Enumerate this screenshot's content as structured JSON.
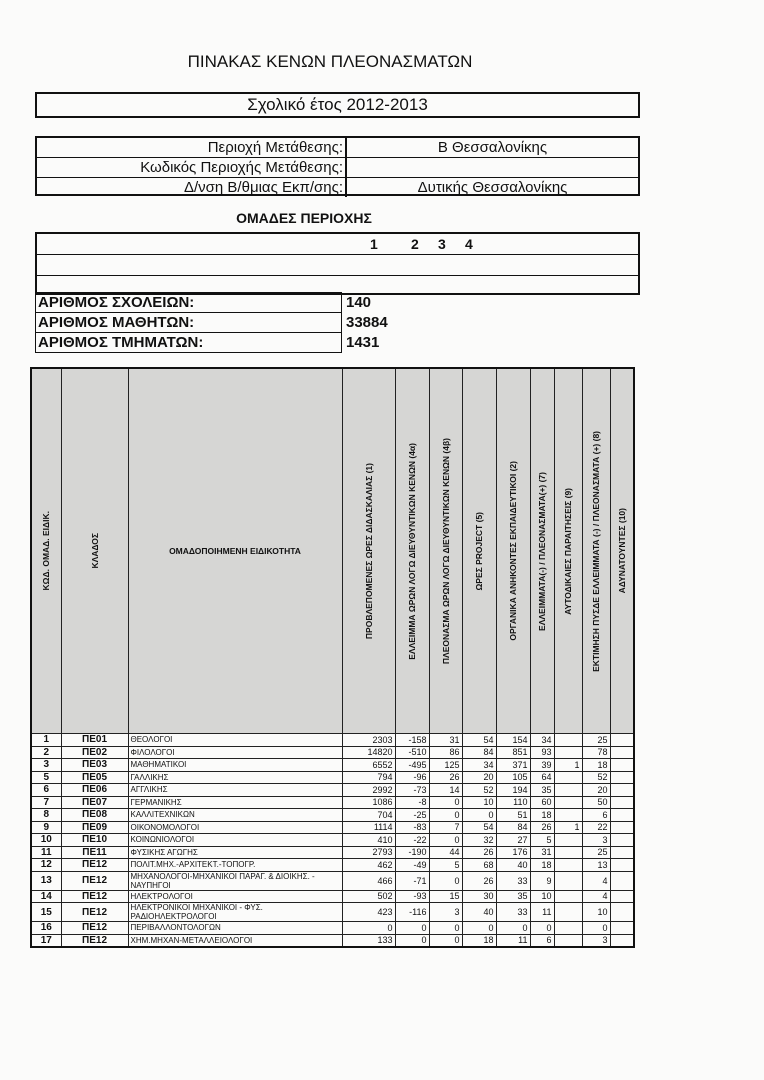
{
  "title": "ΠΙΝΑΚΑΣ ΚΕΝΩΝ ΠΛΕΟΝΑΣΜΑΤΩΝ",
  "school_year": "Σχολικό έτος 2012-2013",
  "region": [
    {
      "label": "Περιοχή Μετάθεσης:",
      "value": "Β Θεσσαλονίκης"
    },
    {
      "label": "Κωδικός Περιοχής Μετάθεσης:",
      "value": ""
    },
    {
      "label": "Δ/νση Β/θμιας Εκπ/σης:",
      "value": "Δυτικής Θεσσαλονίκης"
    }
  ],
  "groups": {
    "title": "ΟΜΑΔΕΣ ΠΕΡΙΟΧΗΣ",
    "numbers": [
      "1",
      "2",
      "3",
      "4"
    ]
  },
  "counts": [
    {
      "label": "ΑΡΙΘΜΟΣ ΣΧΟΛΕΙΩΝ:",
      "value": "140"
    },
    {
      "label": "ΑΡΙΘΜΟΣ ΜΑΘΗΤΩΝ:",
      "value": "33884"
    },
    {
      "label": "ΑΡΙΘΜΟΣ ΤΜΗΜΑΤΩΝ:",
      "value": "1431"
    }
  ],
  "table": {
    "headers": [
      "ΚΩΔ. ΟΜΑΔ. ΕΙΔΙΚ.",
      "ΚΛΑΔΟΣ",
      "ΟΜΑΔΟΠΟΙΗΜΕΝΗ ΕΙΔΙΚΟΤΗΤΑ",
      "ΠΡΟΒΛΕΠΟΜΕΝΕΣ ΩΡΕΣ ΔΙΔΑΣΚΑΛΙΑΣ (1)",
      "ΕΛΛΕΙΜΜΑ ΩΡΩΝ ΛΟΓΩ ΔΙΕΥΘΥΝΤΙΚΩΝ ΚΕΝΩΝ (4α)",
      "ΠΛΕΟΝΑΣΜΑ ΩΡΩΝ ΛΟΓΩ ΔΙΕΥΘΥΝΤΙΚΩΝ ΚΕΝΩΝ (4β)",
      "ΩΡΕΣ PROJECT (5)",
      "ΟΡΓΑΝΙΚΑ ΑΝΗΚΟΝΤΕΣ ΕΚΠΑΙΔΕΥΤΙΚΟΙ     (2)",
      "ΕΛΛΕΙΜΜΑΤΑ(-) / ΠΛΕΟΝΑΣΜΑΤΑ(+) (7)",
      "ΑΥΤΟΔΙΚΑΙΕΣ ΠΑΡΑΙΤΗΣΕΙΣ (9)",
      "ΕΚΤΙΜΗΣΗ ΠΥΣΔΕ ΕΛΛΕΙΜΜΑΤΑ (-) / ΠΛΕΟΝΑΣΜΑΤΑ (+) (8)",
      "ΑΔΥΝΑΤΟΥΝΤΕΣ (10)"
    ],
    "rows": [
      [
        "1",
        "ΠΕ01",
        "ΘΕΟΛΟΓΟΙ",
        "2303",
        "-158",
        "31",
        "54",
        "154",
        "34",
        "",
        "25",
        ""
      ],
      [
        "2",
        "ΠΕ02",
        "ΦΙΛΟΛΟΓΟΙ",
        "14820",
        "-510",
        "86",
        "84",
        "851",
        "93",
        "",
        "78",
        ""
      ],
      [
        "3",
        "ΠΕ03",
        "ΜΑΘΗΜΑΤΙΚΟΙ",
        "6552",
        "-495",
        "125",
        "34",
        "371",
        "39",
        "1",
        "18",
        ""
      ],
      [
        "5",
        "ΠΕ05",
        "ΓΑΛΛΙΚΗΣ",
        "794",
        "-96",
        "26",
        "20",
        "105",
        "64",
        "",
        "52",
        ""
      ],
      [
        "6",
        "ΠΕ06",
        "ΑΓΓΛΙΚΗΣ",
        "2992",
        "-73",
        "14",
        "52",
        "194",
        "35",
        "",
        "20",
        ""
      ],
      [
        "7",
        "ΠΕ07",
        "ΓΕΡΜΑΝΙΚΗΣ",
        "1086",
        "-8",
        "0",
        "10",
        "110",
        "60",
        "",
        "50",
        ""
      ],
      [
        "8",
        "ΠΕ08",
        "ΚΑΛΛΙΤΕΧΝΙΚΩΝ",
        "704",
        "-25",
        "0",
        "0",
        "51",
        "18",
        "",
        "6",
        ""
      ],
      [
        "9",
        "ΠΕ09",
        "ΟΙΚΟΝΟΜΟΛΟΓΟΙ",
        "1114",
        "-83",
        "7",
        "54",
        "84",
        "26",
        "1",
        "22",
        ""
      ],
      [
        "10",
        "ΠΕ10",
        "ΚΟΙΝΩΝΙΟΛΟΓΟΙ",
        "410",
        "-22",
        "0",
        "32",
        "27",
        "5",
        "",
        "3",
        ""
      ],
      [
        "11",
        "ΠΕ11",
        "ΦΥΣΙΚΗΣ ΑΓΩΓΗΣ",
        "2793",
        "-190",
        "44",
        "26",
        "176",
        "31",
        "",
        "25",
        ""
      ],
      [
        "12",
        "ΠΕ12",
        "ΠΟΛΙΤ.ΜΗΧ.-ΑΡΧΙΤΕΚΤ.-ΤΟΠΟΓΡ.",
        "462",
        "-49",
        "5",
        "68",
        "40",
        "18",
        "",
        "13",
        ""
      ],
      [
        "13",
        "ΠΕ12",
        "ΜΗΧΑΝΟΛΟΓΟΙ-ΜΗΧΑΝΙΚΟΙ ΠΑΡΑΓ. & ΔΙΟΙΚΗΣ. - ΝΑΥΠΗΓΟΙ",
        "466",
        "-71",
        "0",
        "26",
        "33",
        "9",
        "",
        "4",
        ""
      ],
      [
        "14",
        "ΠΕ12",
        "ΗΛΕΚΤΡΟΛΟΓΟΙ",
        "502",
        "-93",
        "15",
        "30",
        "35",
        "10",
        "",
        "4",
        ""
      ],
      [
        "15",
        "ΠΕ12",
        "ΗΛΕΚΤΡΟΝΙΚΟΙ ΜΗΧΑΝΙΚΟΙ - ΦΥΣ. ΡΑΔΙΟΗΛΕΚΤΡΟΛΟΓΟΙ",
        "423",
        "-116",
        "3",
        "40",
        "33",
        "11",
        "",
        "10",
        ""
      ],
      [
        "16",
        "ΠΕ12",
        "ΠΕΡΙΒΑΛΛΟΝΤΟΛΟΓΩΝ",
        "0",
        "0",
        "0",
        "0",
        "0",
        "0",
        "",
        "0",
        ""
      ],
      [
        "17",
        "ΠΕ12",
        "ΧΗΜ.ΜΗΧΑΝ-ΜΕΤΑΛΛΕΙΟΛΟΓΟΙ",
        "133",
        "0",
        "0",
        "18",
        "11",
        "6",
        "",
        "3",
        ""
      ]
    ]
  }
}
